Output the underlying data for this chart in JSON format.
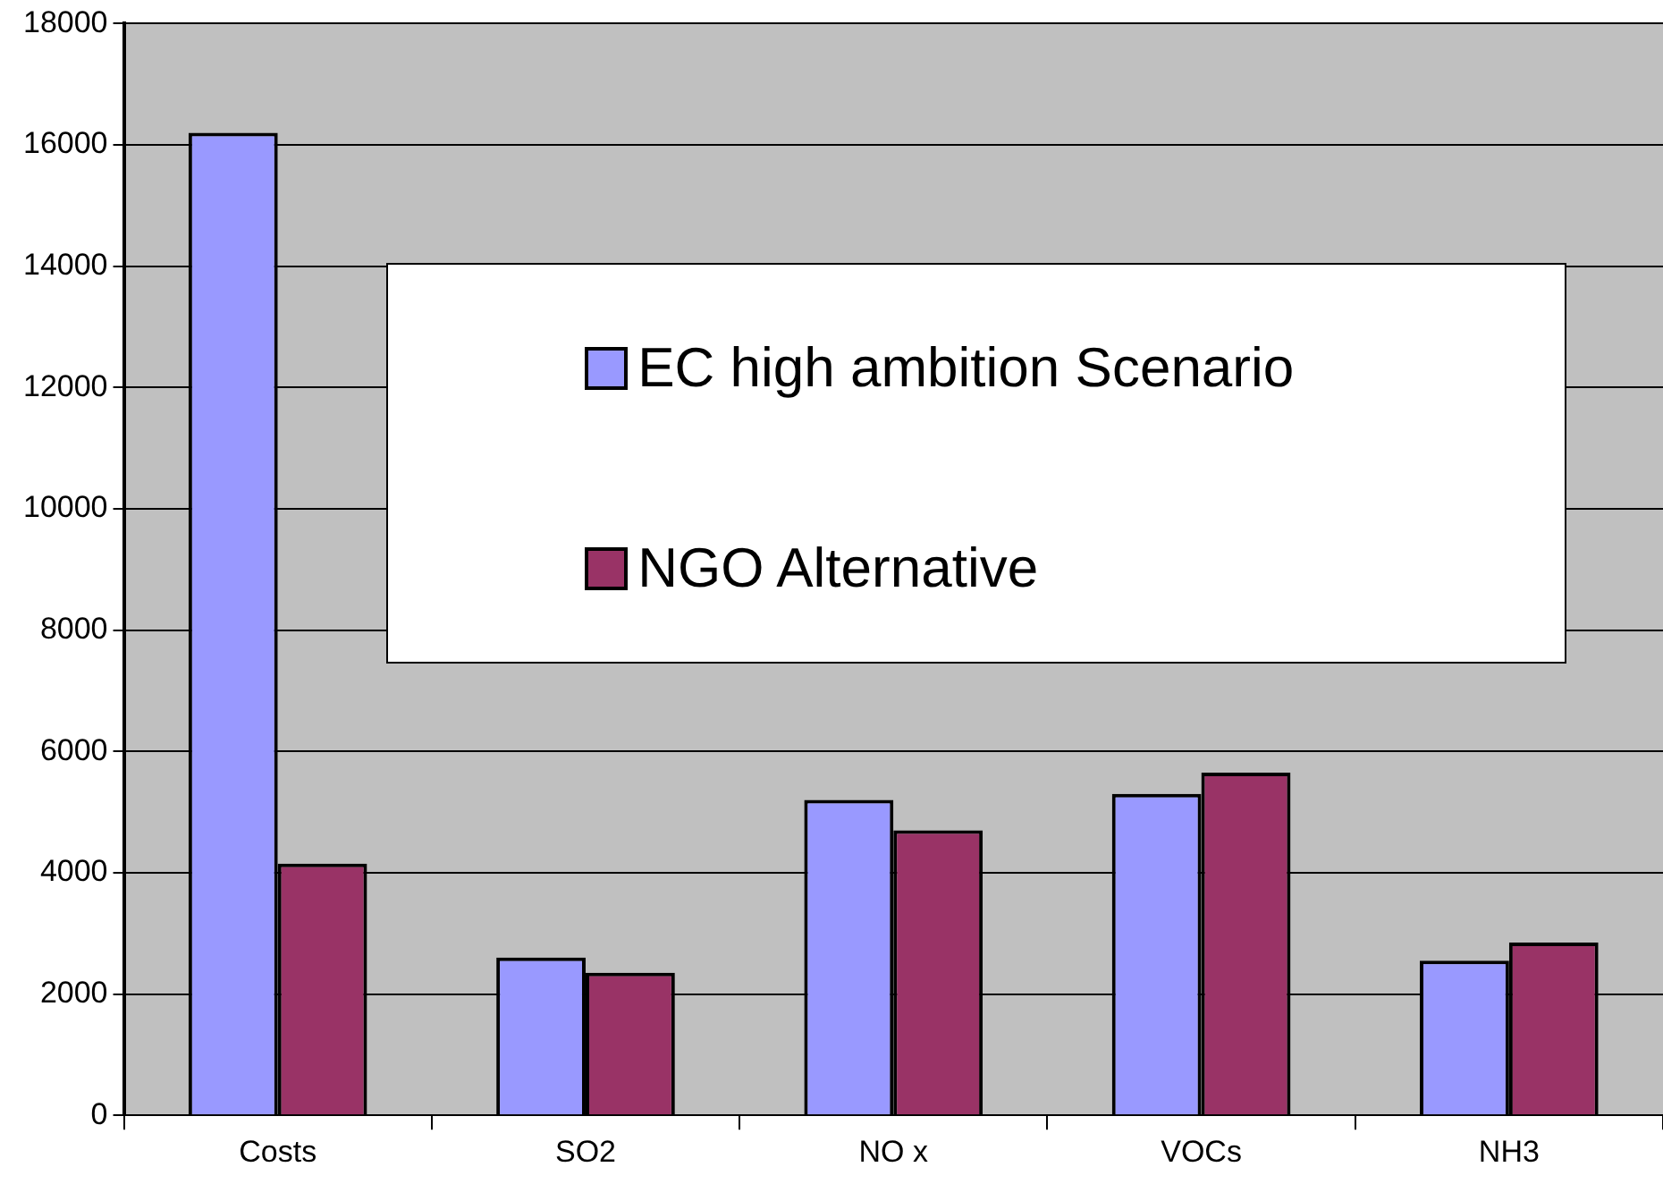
{
  "chart_data": {
    "type": "bar",
    "categories": [
      "Costs",
      "SO2",
      "NO x",
      "VOCs",
      "NH3"
    ],
    "series": [
      {
        "name": "EC high ambition Scenario",
        "color": "#9999ff",
        "values": [
          16200,
          2600,
          5200,
          5300,
          2550
        ]
      },
      {
        "name": "NGO Alternative",
        "color": "#993366",
        "values": [
          4150,
          2350,
          4700,
          5650,
          2850
        ]
      }
    ],
    "ylim": [
      0,
      18000
    ],
    "yticks": [
      0,
      2000,
      4000,
      6000,
      8000,
      10000,
      12000,
      14000,
      16000,
      18000
    ],
    "grid": "y",
    "legend": "top right"
  }
}
